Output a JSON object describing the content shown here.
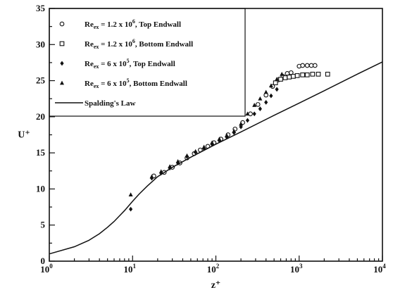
{
  "chart_data": {
    "type": "scatter",
    "xlabel": "z⁺",
    "ylabel": "U⁺",
    "xscale": "log",
    "xlim": [
      1,
      10000
    ],
    "ylim": [
      0,
      35
    ],
    "grid": false,
    "legend_position": "top-left",
    "x_ticks": [
      {
        "value": 1,
        "base": "10",
        "exp": "0"
      },
      {
        "value": 10,
        "base": "10",
        "exp": "1"
      },
      {
        "value": 100,
        "base": "10",
        "exp": "2"
      },
      {
        "value": 1000,
        "base": "10",
        "exp": "3"
      },
      {
        "value": 10000,
        "base": "10",
        "exp": "4"
      }
    ],
    "y_ticks": [
      "0",
      "5",
      "10",
      "15",
      "20",
      "25",
      "30",
      "35"
    ],
    "legend": [
      {
        "prefix": "Re",
        "sub": "ex",
        "mid": " = 1.2 x 10",
        "sup": "6",
        "suffix": ", Top Endwall",
        "marker": "open-circle"
      },
      {
        "prefix": "Re",
        "sub": "ex",
        "mid": " = 1.2 x 10",
        "sup": "6",
        "suffix": ", Bottom Endwall",
        "marker": "open-square"
      },
      {
        "prefix": "Re",
        "sub": "ex",
        "mid": " = 6 x 10",
        "sup": "5",
        "suffix": ", Top Endwall",
        "marker": "filled-diamond"
      },
      {
        "prefix": "Re",
        "sub": "ex",
        "mid": " = 6 x 10",
        "sup": "5",
        "suffix": ", Bottom Endwall",
        "marker": "filled-triangle"
      },
      {
        "prefix": "Spalding's Law",
        "sub": "",
        "mid": "",
        "sup": "",
        "suffix": "",
        "marker": "line"
      }
    ],
    "series": [
      {
        "marker": "open-circle",
        "x": [
          18,
          24,
          30,
          37,
          45,
          55,
          65,
          80,
          95,
          115,
          140,
          170,
          210,
          260,
          320,
          400,
          480,
          560,
          640,
          720,
          800,
          1000,
          1100,
          1250,
          1400,
          1550
        ],
        "y": [
          11.8,
          12.3,
          13.0,
          13.6,
          14.3,
          14.9,
          15.4,
          15.9,
          16.4,
          16.9,
          17.5,
          18.3,
          19.2,
          20.4,
          21.7,
          23.0,
          24.2,
          25.1,
          25.6,
          26.0,
          26.1,
          27.0,
          27.1,
          27.1,
          27.1,
          27.1
        ]
      },
      {
        "marker": "open-square",
        "x": [
          520,
          600,
          680,
          760,
          850,
          950,
          1100,
          1250,
          1450,
          1700,
          2200
        ],
        "y": [
          24.7,
          25.2,
          25.4,
          25.5,
          25.6,
          25.7,
          25.8,
          25.8,
          25.9,
          25.9,
          25.9
        ]
      },
      {
        "marker": "filled-diamond",
        "x": [
          9.5,
          17,
          22,
          28,
          35,
          45,
          57,
          72,
          90,
          110,
          135,
          165,
          200,
          240,
          290,
          340,
          400,
          460,
          540
        ],
        "y": [
          7.2,
          11.5,
          12.2,
          12.9,
          13.6,
          14.5,
          15.1,
          15.6,
          16.2,
          16.7,
          17.2,
          17.8,
          18.6,
          19.5,
          20.4,
          21.1,
          22.0,
          22.9,
          23.8
        ]
      },
      {
        "marker": "filled-triangle",
        "x": [
          9.5,
          17,
          22,
          28,
          35,
          45,
          57,
          72,
          90,
          110,
          135,
          165,
          200,
          240,
          290,
          340,
          400,
          460,
          540,
          620
        ],
        "y": [
          9.2,
          11.7,
          12.4,
          13.1,
          13.8,
          14.6,
          15.2,
          15.8,
          16.4,
          16.9,
          17.4,
          18.0,
          19.0,
          20.4,
          21.6,
          22.5,
          23.4,
          24.3,
          25.2,
          25.9
        ]
      },
      {
        "marker": "line",
        "x": [
          1,
          2,
          3,
          4,
          5,
          6,
          7,
          8,
          10,
          12,
          15,
          20,
          30,
          50,
          100,
          200,
          500,
          1000,
          2000,
          5000,
          10000
        ],
        "y": [
          1.0,
          2.0,
          2.9,
          3.8,
          4.7,
          5.5,
          6.3,
          7.0,
          8.3,
          9.3,
          10.4,
          11.7,
          13.0,
          14.4,
          16.2,
          17.9,
          20.2,
          21.9,
          23.6,
          25.9,
          27.6
        ]
      }
    ]
  }
}
